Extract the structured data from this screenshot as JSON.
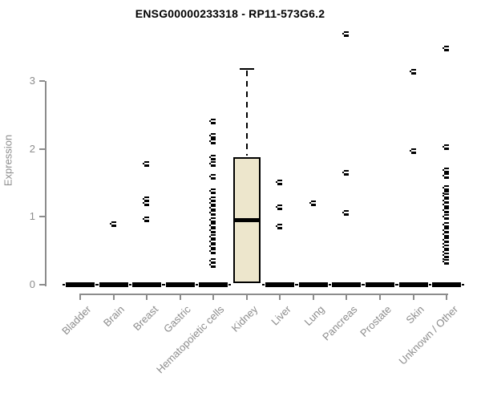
{
  "chart_data": {
    "type": "boxplot",
    "title": "ENSG00000233318 - RP11-573G6.2",
    "ylabel": "Expression",
    "xlabel": "",
    "yticks": [
      0,
      1,
      2,
      3
    ],
    "ylim": [
      0,
      3.75
    ],
    "grid": false,
    "legend": null,
    "axis_color": "#8C8C8C",
    "box_fill": "#EDE6CC",
    "box_border": "#000000",
    "marker": "open-square",
    "marker_color": "#000000",
    "categories": [
      "Bladder",
      "Brain",
      "Breast",
      "Gastric",
      "Hematopoietic cells",
      "Kidney",
      "Liver",
      "Lung",
      "Pancreas",
      "Prostate",
      "Skin",
      "Unknown / Other"
    ],
    "series": [
      {
        "category": "Bladder",
        "q1": 0,
        "median": 0,
        "q3": 0,
        "whisker_low": 0,
        "whisker_high": 0,
        "outliers": []
      },
      {
        "category": "Brain",
        "q1": 0,
        "median": 0,
        "q3": 0,
        "whisker_low": 0,
        "whisker_high": 0,
        "outliers": [
          0.9
        ]
      },
      {
        "category": "Breast",
        "q1": 0,
        "median": 0,
        "q3": 0,
        "whisker_low": 0,
        "whisker_high": 0,
        "outliers": [
          1.79,
          1.27,
          1.2,
          0.97
        ]
      },
      {
        "category": "Gastric",
        "q1": 0,
        "median": 0,
        "q3": 0,
        "whisker_low": 0,
        "whisker_high": 0,
        "outliers": []
      },
      {
        "category": "Hematopoietic cells",
        "q1": 0,
        "median": 0,
        "q3": 0,
        "whisker_low": 0,
        "whisker_high": 0,
        "outliers": [
          2.41,
          2.2,
          2.11,
          1.88,
          1.79,
          1.6,
          1.38,
          1.27,
          1.2,
          1.13,
          1.06,
          0.96,
          0.87,
          0.8,
          0.71,
          0.64,
          0.57,
          0.5,
          0.36,
          0.3
        ]
      },
      {
        "category": "Kidney",
        "q1": 0.02,
        "median": 0.94,
        "q3": 1.88,
        "whisker_low": 0.02,
        "whisker_high": 3.18,
        "outliers": []
      },
      {
        "category": "Liver",
        "q1": 0,
        "median": 0,
        "q3": 0,
        "whisker_low": 0,
        "whisker_high": 0,
        "outliers": [
          1.51,
          1.15,
          0.86
        ]
      },
      {
        "category": "Lung",
        "q1": 0,
        "median": 0,
        "q3": 0,
        "whisker_low": 0,
        "whisker_high": 0,
        "outliers": [
          1.2
        ]
      },
      {
        "category": "Pancreas",
        "q1": 0,
        "median": 0,
        "q3": 0,
        "whisker_low": 0,
        "whisker_high": 0,
        "outliers": [
          3.7,
          1.65,
          1.06
        ]
      },
      {
        "category": "Prostate",
        "q1": 0,
        "median": 0,
        "q3": 0,
        "whisker_low": 0,
        "whisker_high": 0,
        "outliers": []
      },
      {
        "category": "Skin",
        "q1": 0,
        "median": 0,
        "q3": 0,
        "whisker_low": 0,
        "whisker_high": 0,
        "outliers": [
          3.15,
          1.97
        ]
      },
      {
        "category": "Unknown / Other",
        "q1": 0,
        "median": 0,
        "q3": 0,
        "whisker_low": 0,
        "whisker_high": 0,
        "outliers": [
          3.49,
          2.03,
          1.69,
          1.61,
          1.43,
          1.35,
          1.31,
          1.24,
          1.18,
          1.1,
          1.0,
          0.89,
          0.8,
          0.74,
          0.66,
          0.6,
          0.55,
          0.49,
          0.44,
          0.38,
          0.34
        ]
      }
    ]
  }
}
